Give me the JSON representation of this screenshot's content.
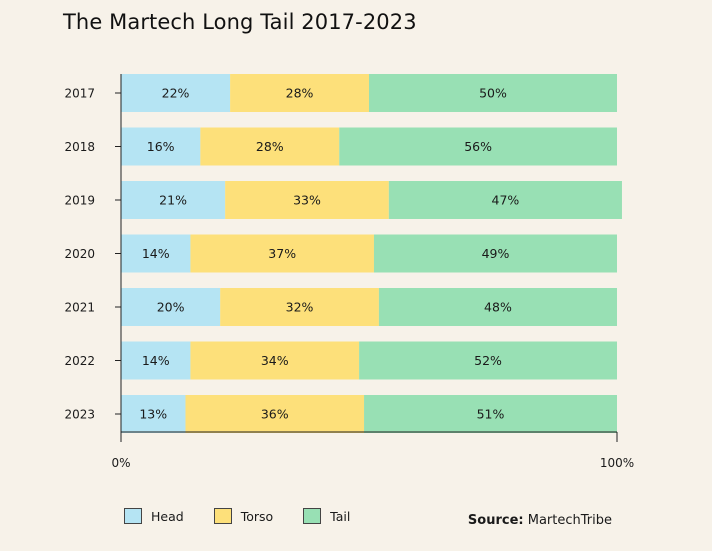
{
  "chart_data": {
    "type": "bar",
    "orientation": "horizontal-stacked-100",
    "title": "The Martech Long Tail 2017-2023",
    "categories": [
      "2017",
      "2018",
      "2019",
      "2020",
      "2021",
      "2022",
      "2023"
    ],
    "series": [
      {
        "name": "Head",
        "color": "#b5e4f3",
        "values": [
          22,
          16,
          21,
          14,
          20,
          14,
          13
        ]
      },
      {
        "name": "Torso",
        "color": "#fde07a",
        "values": [
          28,
          28,
          33,
          37,
          32,
          34,
          36
        ]
      },
      {
        "name": "Tail",
        "color": "#98e0b4",
        "values": [
          50,
          56,
          47,
          49,
          48,
          52,
          51
        ]
      }
    ],
    "xlim": [
      0,
      100
    ],
    "xticks": [
      "0%",
      "100%"
    ],
    "legend_position": "bottom-left"
  },
  "source": {
    "label": "Source:",
    "value": "MartechTribe"
  }
}
